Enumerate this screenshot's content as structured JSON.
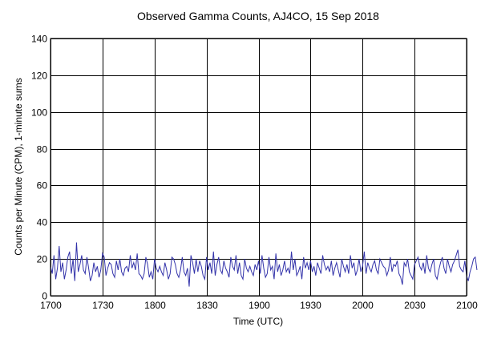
{
  "chart_data": {
    "type": "line",
    "title": "Observed Gamma Counts, AJ4CO, 15 Sep 2018",
    "xlabel": "Time (UTC)",
    "ylabel": "Counts per Minute (CPM), 1-minute sums",
    "x_ticks": [
      "1700",
      "1730",
      "1800",
      "1830",
      "1900",
      "1930",
      "2000",
      "2030",
      "2100"
    ],
    "y_ticks": [
      "0",
      "20",
      "40",
      "60",
      "80",
      "100",
      "120",
      "140"
    ],
    "xlim_minutes": [
      0,
      240
    ],
    "ylim": [
      0,
      140
    ],
    "grid": true,
    "legend": "none",
    "series": [
      {
        "color": "#3333aa",
        "start_time": "1700",
        "interval_minutes": 1,
        "values": [
          16,
          12,
          22,
          9,
          15,
          27,
          13,
          18,
          9,
          14,
          21,
          24,
          12,
          20,
          8,
          29,
          13,
          17,
          22,
          14,
          12,
          21,
          15,
          8,
          11,
          18,
          13,
          16,
          10,
          14,
          23,
          21,
          11,
          15,
          18,
          17,
          12,
          10,
          19,
          14,
          20,
          13,
          11,
          15,
          16,
          13,
          22,
          15,
          18,
          14,
          23,
          12,
          11,
          9,
          12,
          21,
          17,
          10,
          13,
          9,
          20,
          15,
          13,
          16,
          13,
          11,
          18,
          14,
          9,
          12,
          21,
          20,
          17,
          12,
          10,
          14,
          21,
          13,
          11,
          15,
          5,
          22,
          18,
          12,
          20,
          13,
          19,
          16,
          11,
          9,
          21,
          14,
          18,
          12,
          24,
          11,
          17,
          21,
          14,
          12,
          19,
          15,
          13,
          10,
          21,
          16,
          14,
          22,
          12,
          18,
          11,
          9,
          20,
          15,
          13,
          16,
          13,
          11,
          17,
          14,
          19,
          12,
          22,
          15,
          10,
          12,
          21,
          14,
          16,
          9,
          23,
          13,
          17,
          11,
          14,
          19,
          13,
          15,
          12,
          24,
          14,
          20,
          11,
          13,
          16,
          9,
          21,
          15,
          18,
          14,
          19,
          13,
          16,
          11,
          18,
          15,
          12,
          22,
          17,
          14,
          16,
          13,
          19,
          11,
          15,
          18,
          14,
          10,
          20,
          16,
          13,
          17,
          12,
          22,
          15,
          18,
          11,
          14,
          20,
          13,
          16,
          24,
          12,
          18,
          15,
          13,
          17,
          19,
          14,
          12,
          20,
          18,
          16,
          15,
          11,
          14,
          21,
          13,
          17,
          16,
          19,
          12,
          10,
          6,
          18,
          16,
          20,
          13,
          11,
          9,
          17,
          19,
          21,
          16,
          14,
          18,
          12,
          22,
          15,
          13,
          17,
          20,
          11,
          9,
          14,
          18,
          21,
          15,
          12,
          20,
          16,
          13,
          17,
          19,
          22,
          25,
          16,
          14,
          13,
          19,
          11,
          8,
          13,
          16,
          20,
          21,
          14
        ]
      }
    ]
  }
}
